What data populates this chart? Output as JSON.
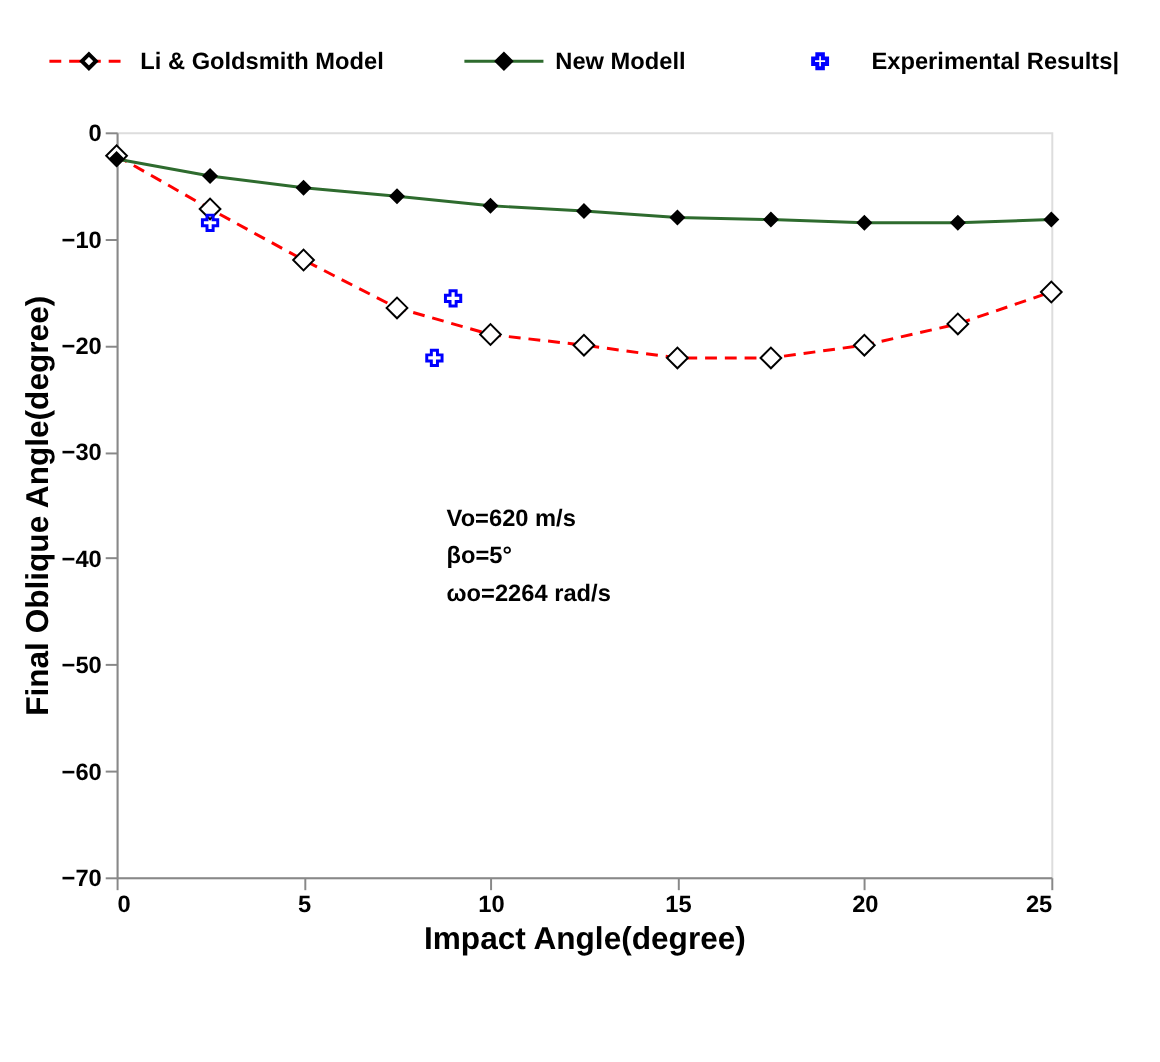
{
  "chart_data": {
    "type": "line",
    "x": [
      0,
      2.5,
      5,
      7.5,
      10,
      12.5,
      15,
      17.5,
      20,
      22.5,
      25
    ],
    "series": [
      {
        "name": "Li & Goldsmith Model",
        "color": "#ff0000",
        "line_style": "dashed",
        "marker": "diamond",
        "values": [
          -2.2,
          -7.2,
          -12,
          -16.5,
          -19,
          -20,
          -21.2,
          -21.2,
          -20,
          -18,
          -15
        ]
      },
      {
        "name": "New Modell",
        "color": "#2e6b2e",
        "line_style": "solid",
        "marker": "diamond",
        "values": [
          -2.5,
          -4.1,
          -5.2,
          -6,
          -6.9,
          -7.4,
          -8,
          -8.2,
          -8.5,
          -8.5,
          -8.2
        ]
      },
      {
        "name": "Experimental Results|",
        "color": "#0000ff",
        "type": "scatter",
        "marker": "cross",
        "x": [
          2.5,
          8.5,
          9
        ],
        "values": [
          -8.5,
          -21.2,
          -15.6
        ]
      }
    ],
    "xlabel": "Impact Angle(degree)",
    "ylabel": "Final Oblique Angle(degree)",
    "xlim": [
      0,
      25
    ],
    "xticks": [
      0,
      5,
      10,
      15,
      20,
      25
    ],
    "ylim": [
      -70,
      0
    ],
    "yticks": [
      -70,
      -60,
      -50,
      -40,
      -30,
      -20,
      -10,
      0
    ],
    "annotations": [
      "Vo=620 m/s",
      "βo=5°",
      " ωo=2264 rad/s"
    ],
    "grid": false,
    "legend": "top"
  }
}
